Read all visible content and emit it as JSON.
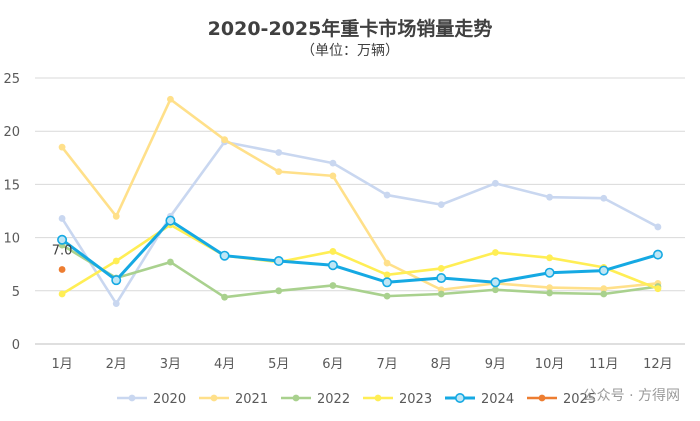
{
  "chart_data": {
    "type": "line",
    "title": "2020-2025年重卡市场销量走势",
    "subtitle": "（单位：万辆）",
    "xlabel": "",
    "ylabel": "",
    "ylim": [
      0,
      25
    ],
    "yticks": [
      0,
      5,
      10,
      15,
      20,
      25
    ],
    "categories": [
      "1月",
      "2月",
      "3月",
      "4月",
      "5月",
      "6月",
      "7月",
      "8月",
      "9月",
      "10月",
      "11月",
      "12月"
    ],
    "legend_position": "bottom",
    "series": [
      {
        "name": "2020",
        "color": "#c9d7f0",
        "emphasis": false,
        "marker": "dot",
        "values": [
          11.8,
          3.8,
          12.0,
          19.0,
          18.0,
          17.0,
          14.0,
          13.1,
          15.1,
          13.8,
          13.7,
          11.0
        ]
      },
      {
        "name": "2021",
        "color": "#ffe08a",
        "emphasis": false,
        "marker": "dot",
        "values": [
          18.5,
          12.0,
          23.0,
          19.2,
          16.2,
          15.8,
          7.6,
          5.1,
          5.7,
          5.3,
          5.2,
          5.7
        ]
      },
      {
        "name": "2022",
        "color": "#a9d18e",
        "emphasis": false,
        "marker": "dot",
        "values": [
          9.3,
          6.2,
          7.7,
          4.4,
          5.0,
          5.5,
          4.5,
          4.7,
          5.1,
          4.8,
          4.7,
          5.4
        ]
      },
      {
        "name": "2023",
        "color": "#ffee55",
        "emphasis": false,
        "marker": "dot",
        "values": [
          4.7,
          7.8,
          11.2,
          8.3,
          7.7,
          8.7,
          6.5,
          7.1,
          8.6,
          8.1,
          7.2,
          5.2
        ]
      },
      {
        "name": "2024",
        "color": "#15a9e3",
        "emphasis": true,
        "marker": "ring",
        "values": [
          9.8,
          6.0,
          11.6,
          8.3,
          7.8,
          7.4,
          5.8,
          6.2,
          5.8,
          6.7,
          6.9,
          8.4
        ]
      },
      {
        "name": "2025",
        "color": "#ed7d31",
        "emphasis": false,
        "marker": "dot",
        "values": [
          7.0,
          null,
          null,
          null,
          null,
          null,
          null,
          null,
          null,
          null,
          null,
          null
        ]
      }
    ],
    "annotations": [
      {
        "series": "2025",
        "index": 0,
        "text": "7.0"
      }
    ]
  },
  "watermark": "公众号 · 方得网"
}
